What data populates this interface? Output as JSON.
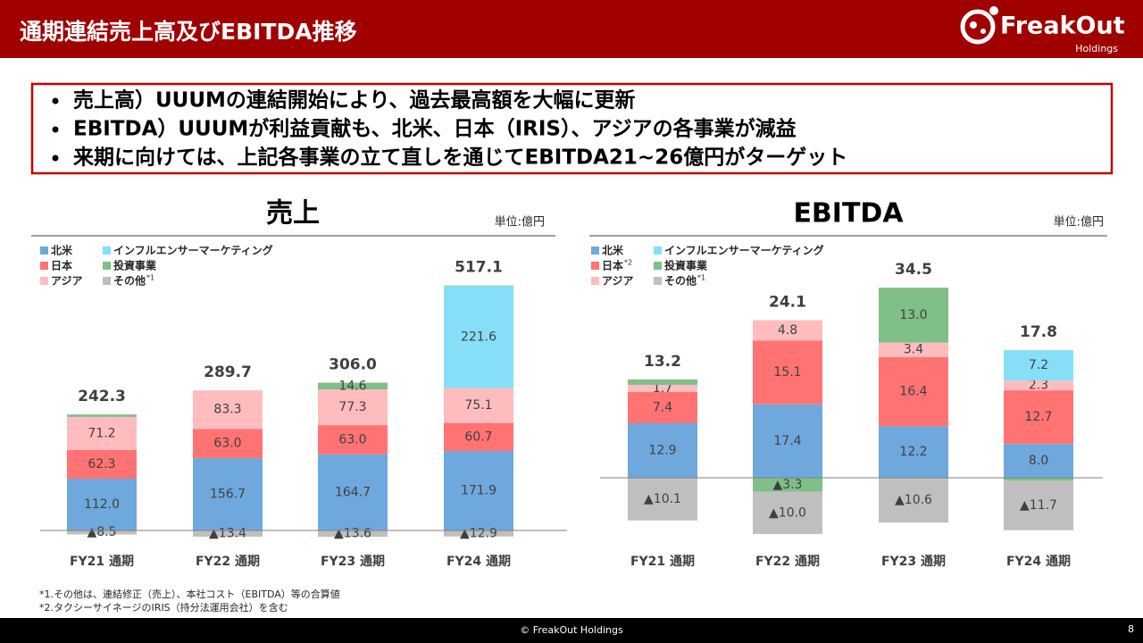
{
  "header": {
    "title": "通期連結売上高及びEBITDA推移",
    "logo": "FreakOut",
    "logo_sub": "Holdings"
  },
  "bullets": [
    "売上高）UUUMの連結開始により、過去最高額を大幅に更新",
    "EBITDA）UUUMが利益貢献も、北米、日本（IRIS）、アジアの各事業が減益",
    "来期に向けては、上記各事業の立て直しを通じてEBITDA21~26億円がターゲット"
  ],
  "chart_data": [
    {
      "type": "bar",
      "stacked": true,
      "title": "売上",
      "unit": "単位:億円",
      "categories": [
        "FY21 通期",
        "FY22 通期",
        "FY23 通期",
        "FY24 通期"
      ],
      "series": [
        {
          "name": "北米",
          "color": "#6fa8dc",
          "values": [
            112.0,
            156.7,
            164.7,
            171.9
          ],
          "value_labels": [
            "112.0",
            "156.7",
            "164.7",
            "171.9"
          ]
        },
        {
          "name": "インフルエンサーマーケティング",
          "color": "#87dff7",
          "values": [
            null,
            null,
            null,
            221.6
          ],
          "value_labels": [
            null,
            null,
            null,
            "221.6"
          ]
        },
        {
          "name": "日本",
          "color": "#ff7373",
          "values": [
            62.3,
            63.0,
            63.0,
            60.7
          ],
          "value_labels": [
            "62.3",
            "63.0",
            "63.0",
            "60.7"
          ]
        },
        {
          "name": "投資事業",
          "color": "#80bf88",
          "values": [
            5.3,
            null,
            14.6,
            0.7
          ],
          "value_labels": [
            null,
            null,
            "14.6",
            null
          ]
        },
        {
          "name": "アジア",
          "color": "#ffbcbf",
          "values": [
            71.2,
            83.3,
            77.3,
            75.1
          ],
          "value_labels": [
            "71.2",
            "83.3",
            "77.3",
            "75.1"
          ]
        },
        {
          "name": "その他",
          "note": "*1",
          "color": "#bfbfbf",
          "values": [
            -8.5,
            -13.4,
            -13.6,
            -12.9
          ],
          "value_labels": [
            "▲8.5",
            "▲13.4",
            "▲13.6",
            "▲12.9"
          ]
        }
      ],
      "totals": [
        242.3,
        289.7,
        306.0,
        517.1
      ],
      "total_labels": [
        "242.3",
        "289.7",
        "306.0",
        "517.1"
      ],
      "ylim": [
        -20,
        560
      ]
    },
    {
      "type": "bar",
      "stacked": true,
      "title": "EBITDA",
      "unit": "単位:億円",
      "categories": [
        "FY21 通期",
        "FY22 通期",
        "FY23 通期",
        "FY24 通期"
      ],
      "series": [
        {
          "name": "北米",
          "color": "#6fa8dc",
          "values": [
            12.9,
            17.4,
            12.2,
            8.0
          ],
          "value_labels": [
            "12.9",
            "17.4",
            "12.2",
            "8.0"
          ]
        },
        {
          "name": "インフルエンサーマーケティング",
          "color": "#87dff7",
          "values": [
            null,
            null,
            null,
            7.2
          ],
          "value_labels": [
            null,
            null,
            null,
            "7.2"
          ]
        },
        {
          "name": "日本",
          "note": "*2",
          "color": "#ff7373",
          "values": [
            7.4,
            15.1,
            16.4,
            12.7
          ],
          "value_labels": [
            "7.4",
            "15.1",
            "16.4",
            "12.7"
          ]
        },
        {
          "name": "投資事業",
          "color": "#80bf88",
          "values": [
            1.3,
            -3.3,
            13.0,
            -0.7
          ],
          "value_labels": [
            null,
            "▲3.3",
            "13.0",
            null
          ]
        },
        {
          "name": "アジア",
          "color": "#ffbcbf",
          "values": [
            1.7,
            4.8,
            3.4,
            2.3
          ],
          "value_labels": [
            "1.7",
            "4.8",
            "3.4",
            "2.3"
          ]
        },
        {
          "name": "その他",
          "note": "*1",
          "color": "#bfbfbf",
          "values": [
            -10.1,
            -10.0,
            -10.6,
            -11.7
          ],
          "value_labels": [
            "▲10.1",
            "▲10.0",
            "▲10.6",
            "▲11.7"
          ]
        }
      ],
      "totals": [
        13.2,
        24.1,
        34.5,
        17.8
      ],
      "total_labels": [
        "13.2",
        "24.1",
        "34.5",
        "17.8"
      ],
      "ylim": [
        -20,
        50
      ]
    }
  ],
  "footnotes": [
    "*1.その他は、連結修正（売上）、本社コスト（EBITDA）等の合算値",
    "*2.タクシーサイネージのIRIS（持分法運用会社）を含む"
  ],
  "footer": {
    "copyright": "© FreakOut Holdings",
    "page": 8
  }
}
